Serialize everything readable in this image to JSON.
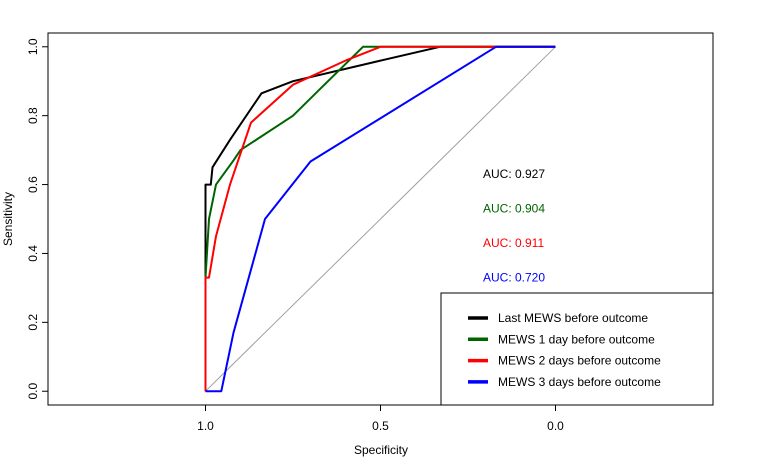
{
  "chart_data": {
    "type": "line",
    "title": "",
    "xlabel": "Specificity",
    "ylabel": "Sensitivity",
    "x_reversed": true,
    "xlim": [
      1.45,
      -0.45
    ],
    "ylim": [
      -0.04,
      1.04
    ],
    "x_ticks": [
      {
        "value": 1.0,
        "label": "1.0"
      },
      {
        "value": 0.5,
        "label": "0.5"
      },
      {
        "value": 0.0,
        "label": "0.0"
      }
    ],
    "y_ticks": [
      {
        "value": 0.0,
        "label": "0.0"
      },
      {
        "value": 0.2,
        "label": "0.2"
      },
      {
        "value": 0.4,
        "label": "0.4"
      },
      {
        "value": 0.6,
        "label": "0.6"
      },
      {
        "value": 0.8,
        "label": "0.8"
      },
      {
        "value": 1.0,
        "label": "1.0"
      }
    ],
    "grid": false,
    "legend_position": "bottom-right",
    "reference_line": {
      "color": "#a0a0a0",
      "points": [
        [
          1.0,
          0.0
        ],
        [
          0.0,
          1.0
        ]
      ]
    },
    "series": [
      {
        "name": "Last MEWS before outcome",
        "color": "#000000",
        "auc_label": "AUC: 0.927",
        "points": [
          [
            1.0,
            0.0
          ],
          [
            1.0,
            0.33
          ],
          [
            1.0,
            0.6
          ],
          [
            0.985,
            0.6
          ],
          [
            0.98,
            0.65
          ],
          [
            0.93,
            0.73
          ],
          [
            0.84,
            0.865
          ],
          [
            0.75,
            0.9
          ],
          [
            0.5,
            0.96
          ],
          [
            0.33,
            1.0
          ],
          [
            0.0,
            1.0
          ]
        ]
      },
      {
        "name": "MEWS 1 day before outcome",
        "color": "#006400",
        "auc_label": "AUC: 0.904",
        "points": [
          [
            1.0,
            0.0
          ],
          [
            1.0,
            0.33
          ],
          [
            0.99,
            0.5
          ],
          [
            0.97,
            0.6
          ],
          [
            0.92,
            0.67
          ],
          [
            0.9,
            0.7
          ],
          [
            0.75,
            0.8
          ],
          [
            0.67,
            0.88
          ],
          [
            0.55,
            1.0
          ],
          [
            0.0,
            1.0
          ]
        ]
      },
      {
        "name": "MEWS 2 days before outcome",
        "color": "#ff0000",
        "auc_label": "AUC: 0.911",
        "points": [
          [
            1.0,
            0.0
          ],
          [
            1.0,
            0.33
          ],
          [
            0.99,
            0.33
          ],
          [
            0.97,
            0.45
          ],
          [
            0.93,
            0.6
          ],
          [
            0.87,
            0.78
          ],
          [
            0.75,
            0.89
          ],
          [
            0.6,
            0.96
          ],
          [
            0.5,
            1.0
          ],
          [
            0.0,
            1.0
          ]
        ]
      },
      {
        "name": "MEWS 3 days before outcome",
        "color": "#0000ff",
        "auc_label": "AUC: 0.720",
        "points": [
          [
            1.0,
            0.0
          ],
          [
            0.955,
            0.0
          ],
          [
            0.92,
            0.17
          ],
          [
            0.83,
            0.5
          ],
          [
            0.7,
            0.667
          ],
          [
            0.17,
            1.0
          ],
          [
            0.0,
            1.0
          ]
        ]
      }
    ]
  }
}
